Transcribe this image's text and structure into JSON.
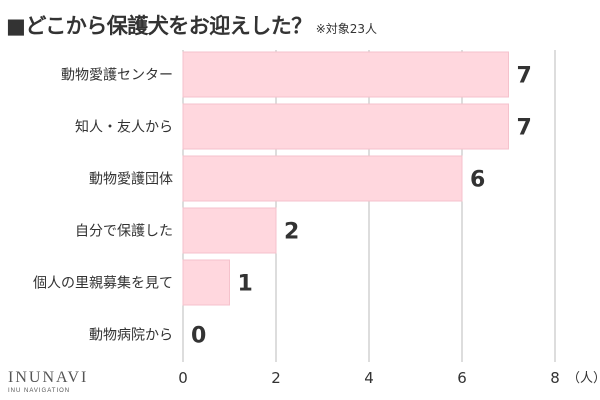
{
  "title": {
    "text": "■どこから保護犬をお迎えした？",
    "note": "※対象23人"
  },
  "logo": {
    "brand": "INUNAVI",
    "sub": "INU NAVIGATION"
  },
  "colors": {
    "bar": "#ffd7de",
    "bar_stroke": "#f5c2cc",
    "text": "#333333",
    "grid": "#bbbbbb"
  },
  "chart_data": {
    "type": "bar",
    "orientation": "horizontal",
    "categories": [
      "動物愛護センター",
      "知人・友人から",
      "動物愛護団体",
      "自分で保護した",
      "個人の里親募集を見て",
      "動物病院から"
    ],
    "values": [
      7,
      7,
      6,
      2,
      1,
      0
    ],
    "xlim": [
      0,
      8
    ],
    "xticks": [
      0,
      2,
      4,
      6,
      8
    ],
    "xunit": "（人）",
    "grid": true
  }
}
